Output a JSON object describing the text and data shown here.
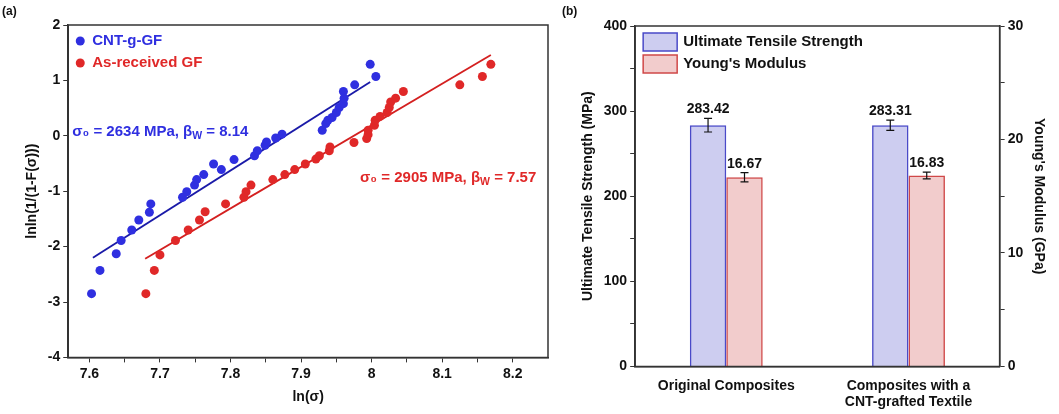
{
  "chart_data": [
    {
      "type": "scatter",
      "title": "(a)",
      "xlabel": "ln(σ)",
      "ylabel": "lnln(1/(1-F(σ)))",
      "xlim": [
        7.57,
        8.25
      ],
      "xticks": [
        7.6,
        {
          "value": 7.65,
          "label": null
        },
        7.7,
        {
          "value": 7.75,
          "label": null
        },
        7.8,
        {
          "value": 7.85,
          "label": null
        },
        7.9,
        {
          "value": 7.95,
          "label": null
        },
        8.0,
        {
          "value": 8.05,
          "label": null
        },
        8.1,
        {
          "value": 8.15,
          "label": null
        },
        8.2
      ],
      "ylim": [
        -4,
        2
      ],
      "yticks": [
        -4,
        -3,
        -2,
        -1,
        0,
        1,
        2
      ],
      "grid": false,
      "legend": "top left",
      "marker": "circle",
      "series": [
        {
          "name": "CNT-g-GF",
          "color": "#2f2fe0",
          "x": [
            7.603,
            7.615,
            7.638,
            7.645,
            7.66,
            7.67,
            7.685,
            7.687,
            7.732,
            7.738,
            7.749,
            7.752,
            7.762,
            7.776,
            7.787,
            7.805,
            7.834,
            7.838,
            7.849,
            7.851,
            7.864,
            7.873,
            7.93,
            7.935,
            7.938,
            7.944,
            7.95,
            7.954,
            7.96,
            7.961,
            7.96,
            7.976,
            8.006,
            7.998
          ],
          "values": [
            -2.85,
            -2.43,
            -2.13,
            -1.89,
            -1.7,
            -1.52,
            -1.38,
            -1.23,
            -1.11,
            -1.01,
            -0.89,
            -0.79,
            -0.7,
            -0.51,
            -0.61,
            -0.43,
            -0.36,
            -0.27,
            -0.17,
            -0.11,
            -0.04,
            0.03,
            0.1,
            0.22,
            0.28,
            0.33,
            0.42,
            0.51,
            0.58,
            0.68,
            0.8,
            0.92,
            1.07,
            1.29
          ]
        },
        {
          "name": "As-received GF",
          "color": "#e02828",
          "x": [
            7.68,
            7.692,
            7.7,
            7.722,
            7.74,
            7.756,
            7.764,
            7.793,
            7.819,
            7.822,
            7.829,
            7.86,
            7.877,
            7.891,
            7.906,
            7.921,
            7.926,
            7.94,
            7.941,
            7.975,
            7.993,
            7.995,
            7.995,
            8.004,
            8.005,
            8.012,
            8.022,
            8.025,
            8.027,
            8.034,
            8.045,
            8.125,
            8.157,
            8.169
          ],
          "values": [
            -2.85,
            -2.43,
            -2.15,
            -1.89,
            -1.7,
            -1.52,
            -1.37,
            -1.23,
            -1.11,
            -1.01,
            -0.89,
            -0.79,
            -0.7,
            -0.61,
            -0.51,
            -0.42,
            -0.36,
            -0.27,
            -0.2,
            -0.12,
            -0.05,
            0.02,
            0.1,
            0.19,
            0.28,
            0.35,
            0.42,
            0.51,
            0.61,
            0.68,
            0.8,
            0.92,
            1.07,
            1.29
          ]
        },
        {
          "type": "line",
          "marker": "none",
          "color": "#1a1aa8",
          "x": [
            7.605,
            7.998
          ],
          "values": [
            -2.2,
            0.97
          ]
        },
        {
          "type": "line",
          "marker": "none",
          "color": "#d42020",
          "x": [
            7.679,
            8.169
          ],
          "values": [
            -2.22,
            1.46
          ]
        }
      ],
      "annotations": [
        "σ₀ = 2634 MPa, β$_{W}$ = 8.14",
        "σ₀ = 2905 MPa, β$_{W}$ = 7.57"
      ]
    },
    {
      "type": "bar",
      "title": "(b)",
      "ylabel": "Ultimate Tensile Strength (MPa)",
      "y2label": "Young's Modulus (GPa)",
      "categories": [
        "Original Composites",
        "Composites with a CNT-grafted Textile"
      ],
      "ylim": [
        0,
        400
      ],
      "yticks": [
        0,
        {
          "value": 50,
          "label": null
        },
        100,
        {
          "value": 150,
          "label": null
        },
        200,
        {
          "value": 250,
          "label": null
        },
        300,
        {
          "value": 350,
          "label": null
        },
        400
      ],
      "y2lim": [
        0,
        30
      ],
      "y2ticks": [
        0,
        {
          "value": 5,
          "label": null
        },
        10,
        {
          "value": 15,
          "label": null
        },
        20,
        {
          "value": 25,
          "label": null
        },
        30
      ],
      "grid": false,
      "legend": "top left",
      "data_labels": true,
      "series": [
        {
          "name": "Ultimate Tensile Strength",
          "color": "#4a4ac8",
          "values": [
            283.42,
            283.31
          ],
          "errors": [
            8,
            6
          ]
        },
        {
          "name": "Young's Modulus",
          "color": "#d04848",
          "axis": "y2",
          "values": [
            16.67,
            16.83
          ],
          "errors": [
            0.4,
            0.3
          ]
        }
      ]
    }
  ]
}
